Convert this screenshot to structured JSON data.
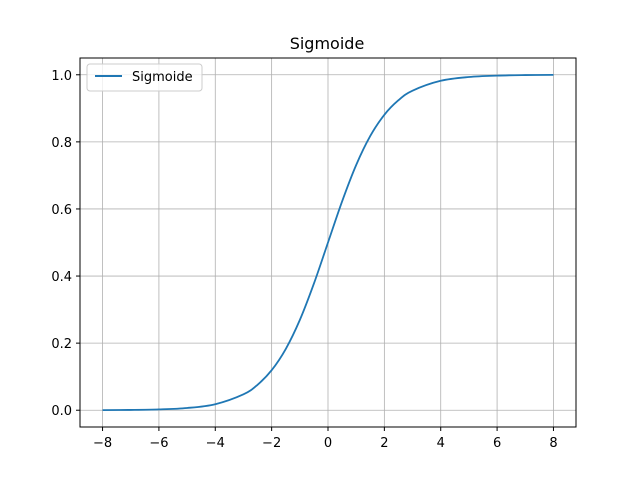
{
  "chart_data": {
    "type": "line",
    "title": "Sigmoide",
    "xlabel": "",
    "ylabel": "",
    "xlim": [
      -8.8,
      8.8
    ],
    "ylim": [
      -0.05,
      1.05
    ],
    "x_ticks": [
      -8,
      -6,
      -4,
      -2,
      0,
      2,
      4,
      6,
      8
    ],
    "x_tick_labels": [
      "−8",
      "−6",
      "−4",
      "−2",
      "0",
      "2",
      "4",
      "6",
      "8"
    ],
    "y_ticks": [
      0.0,
      0.2,
      0.4,
      0.6,
      0.8,
      1.0
    ],
    "y_tick_labels": [
      "0.0",
      "0.2",
      "0.4",
      "0.6",
      "0.8",
      "1.0"
    ],
    "grid": true,
    "legend_position": "top-left",
    "series": [
      {
        "name": "Sigmoide",
        "color": "#1f77b4",
        "x": [
          -8,
          -7,
          -6,
          -5,
          -4,
          -3,
          -2.5,
          -2,
          -1.5,
          -1,
          -0.5,
          0,
          0.5,
          1,
          1.5,
          2,
          2.5,
          3,
          4,
          5,
          6,
          7,
          8
        ],
        "y": [
          0.0003,
          0.0009,
          0.0025,
          0.0067,
          0.018,
          0.0474,
          0.0759,
          0.1192,
          0.1824,
          0.2689,
          0.3775,
          0.5,
          0.6225,
          0.7311,
          0.8176,
          0.8808,
          0.9241,
          0.9526,
          0.982,
          0.9933,
          0.9975,
          0.9991,
          0.9997
        ]
      }
    ]
  }
}
